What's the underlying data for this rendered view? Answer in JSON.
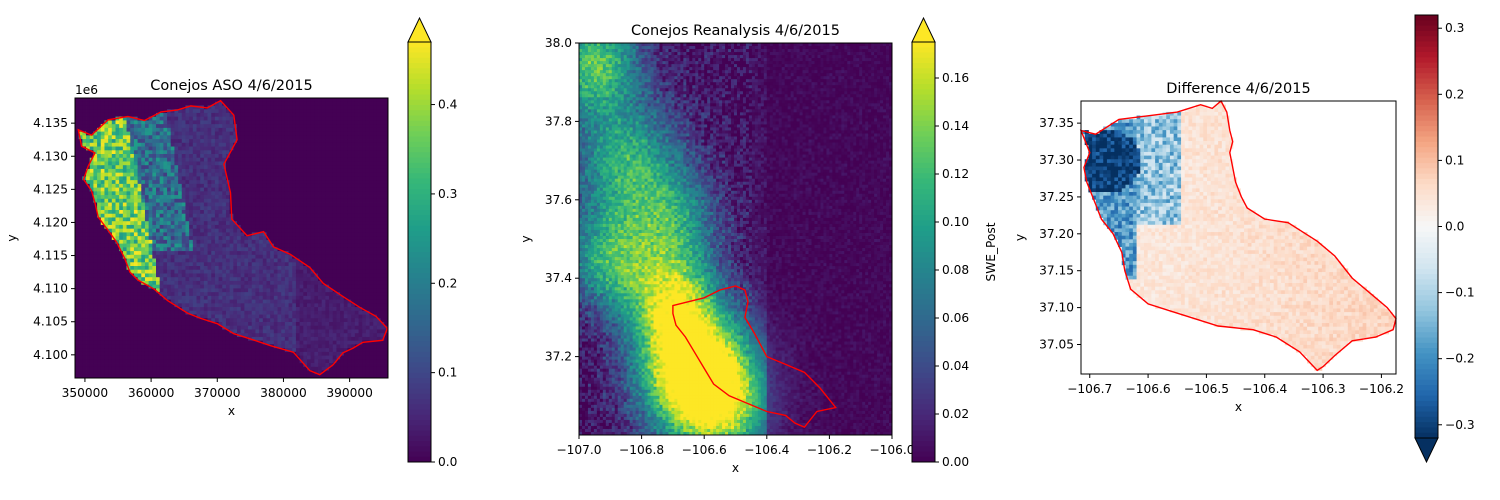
{
  "chart_data": [
    {
      "type": "heatmap",
      "title": "Conejos ASO 4/6/2015",
      "xlabel": "x",
      "ylabel": "y",
      "xlim": [
        348500,
        395800
      ],
      "ylim": [
        4096500,
        4138800
      ],
      "x_ticks": [
        350000,
        360000,
        370000,
        380000,
        390000
      ],
      "x_tick_labels": [
        "350000",
        "360000",
        "370000",
        "380000",
        "390000"
      ],
      "y_ticks": [
        4100000,
        4105000,
        4110000,
        4115000,
        4120000,
        4125000,
        4130000,
        4135000
      ],
      "y_tick_labels": [
        "4.100",
        "4.105",
        "4.110",
        "4.115",
        "4.120",
        "4.125",
        "4.130",
        "4.135"
      ],
      "y_offset_label": "1e6",
      "colormap": "viridis",
      "colorbar": {
        "vmin": 0.0,
        "vmax": 0.47,
        "extend": "max",
        "ticks": [
          0.0,
          0.1,
          0.2,
          0.3,
          0.4
        ],
        "tick_labels": [
          "0.0",
          "0.1",
          "0.2",
          "0.3",
          "0.4"
        ],
        "label": ""
      },
      "outline_color": "#ff0000",
      "outline": [
        [
          349000,
          4134000
        ],
        [
          351000,
          4133200
        ],
        [
          353500,
          4135500
        ],
        [
          356500,
          4136000
        ],
        [
          359000,
          4135400
        ],
        [
          361500,
          4136700
        ],
        [
          364000,
          4137000
        ],
        [
          366000,
          4137600
        ],
        [
          368500,
          4137300
        ],
        [
          370500,
          4138400
        ],
        [
          372500,
          4136200
        ],
        [
          373000,
          4132500
        ],
        [
          371000,
          4128800
        ],
        [
          372000,
          4124500
        ],
        [
          372200,
          4120500
        ],
        [
          374500,
          4118000
        ],
        [
          377000,
          4118600
        ],
        [
          378500,
          4116300
        ],
        [
          381000,
          4115200
        ],
        [
          384000,
          4113200
        ],
        [
          386000,
          4110800
        ],
        [
          389000,
          4108800
        ],
        [
          391500,
          4107200
        ],
        [
          394000,
          4105800
        ],
        [
          395700,
          4104000
        ],
        [
          395000,
          4102200
        ],
        [
          392000,
          4101900
        ],
        [
          390500,
          4101000
        ],
        [
          389000,
          4100300
        ],
        [
          387500,
          4098500
        ],
        [
          385500,
          4097000
        ],
        [
          384000,
          4097600
        ],
        [
          381500,
          4100400
        ],
        [
          378000,
          4101400
        ],
        [
          375000,
          4102400
        ],
        [
          372500,
          4103200
        ],
        [
          370000,
          4104700
        ],
        [
          367500,
          4105500
        ],
        [
          365500,
          4106300
        ],
        [
          362500,
          4108200
        ],
        [
          360500,
          4109900
        ],
        [
          358000,
          4111300
        ],
        [
          356800,
          4112500
        ],
        [
          356000,
          4114600
        ],
        [
          354800,
          4117000
        ],
        [
          353500,
          4118800
        ],
        [
          352000,
          4120800
        ],
        [
          351500,
          4123000
        ],
        [
          351000,
          4124800
        ],
        [
          349800,
          4126500
        ],
        [
          350500,
          4128500
        ],
        [
          351500,
          4130500
        ],
        [
          349500,
          4131500
        ],
        [
          349000,
          4134000
        ]
      ]
    },
    {
      "type": "heatmap",
      "title": "Conejos Reanalysis 4/6/2015",
      "xlabel": "x",
      "ylabel": "y",
      "xlim": [
        -107.0,
        -106.0
      ],
      "ylim": [
        37.0,
        38.0
      ],
      "x_ticks": [
        -107.0,
        -106.8,
        -106.6,
        -106.4,
        -106.2,
        -106.0
      ],
      "x_tick_labels": [
        "−107.0",
        "−106.8",
        "−106.6",
        "−106.4",
        "−106.2",
        "−106.0"
      ],
      "y_ticks": [
        37.2,
        37.4,
        37.6,
        37.8,
        38.0
      ],
      "y_tick_labels": [
        "37.2",
        "37.4",
        "37.6",
        "37.8",
        "38.0"
      ],
      "colormap": "viridis",
      "colorbar": {
        "vmin": 0.0,
        "vmax": 0.175,
        "extend": "max",
        "ticks": [
          0.0,
          0.02,
          0.04,
          0.06,
          0.08,
          0.1,
          0.12,
          0.14,
          0.16
        ],
        "tick_labels": [
          "0.00",
          "0.02",
          "0.04",
          "0.06",
          "0.08",
          "0.10",
          "0.12",
          "0.14",
          "0.16"
        ],
        "label": "SWE_Post"
      },
      "outline_color": "#ff0000",
      "outline": [
        [
          -106.7,
          37.33
        ],
        [
          -106.65,
          37.34
        ],
        [
          -106.6,
          37.35
        ],
        [
          -106.55,
          37.37
        ],
        [
          -106.5,
          37.38
        ],
        [
          -106.47,
          37.37
        ],
        [
          -106.46,
          37.34
        ],
        [
          -106.47,
          37.3
        ],
        [
          -106.44,
          37.26
        ],
        [
          -106.4,
          37.2
        ],
        [
          -106.34,
          37.18
        ],
        [
          -106.28,
          37.16
        ],
        [
          -106.23,
          37.12
        ],
        [
          -106.2,
          37.09
        ],
        [
          -106.18,
          37.07
        ],
        [
          -106.24,
          37.06
        ],
        [
          -106.28,
          37.02
        ],
        [
          -106.31,
          37.03
        ],
        [
          -106.34,
          37.05
        ],
        [
          -106.4,
          37.06
        ],
        [
          -106.46,
          37.08
        ],
        [
          -106.52,
          37.1
        ],
        [
          -106.57,
          37.13
        ],
        [
          -106.6,
          37.17
        ],
        [
          -106.63,
          37.21
        ],
        [
          -106.66,
          37.25
        ],
        [
          -106.69,
          37.28
        ],
        [
          -106.7,
          37.31
        ],
        [
          -106.7,
          37.33
        ]
      ]
    },
    {
      "type": "heatmap",
      "title": "Difference 4/6/2015",
      "xlabel": "x",
      "ylabel": "y",
      "xlim": [
        -106.715,
        -106.175
      ],
      "ylim": [
        37.01,
        37.38
      ],
      "x_ticks": [
        -106.7,
        -106.6,
        -106.5,
        -106.4,
        -106.3,
        -106.2
      ],
      "x_tick_labels": [
        "−106.7",
        "−106.6",
        "−106.5",
        "−106.4",
        "−106.3",
        "−106.2"
      ],
      "y_ticks": [
        37.05,
        37.1,
        37.15,
        37.2,
        37.25,
        37.3,
        37.35
      ],
      "y_tick_labels": [
        "37.05",
        "37.10",
        "37.15",
        "37.20",
        "37.25",
        "37.30",
        "37.35"
      ],
      "colormap": "RdBu_r",
      "colorbar": {
        "vmin": -0.32,
        "vmax": 0.32,
        "extend": "min",
        "ticks": [
          -0.3,
          -0.2,
          -0.1,
          0.0,
          0.1,
          0.2,
          0.3
        ],
        "tick_labels": [
          "−0.3",
          "−0.2",
          "−0.1",
          "0.0",
          "0.1",
          "0.2",
          "0.3"
        ],
        "label": ""
      },
      "outline_color": "#ff0000",
      "outline": [
        [
          -106.715,
          37.34
        ],
        [
          -106.69,
          37.335
        ],
        [
          -106.65,
          37.355
        ],
        [
          -106.6,
          37.36
        ],
        [
          -106.55,
          37.365
        ],
        [
          -106.51,
          37.375
        ],
        [
          -106.49,
          37.37
        ],
        [
          -106.475,
          37.38
        ],
        [
          -106.465,
          37.365
        ],
        [
          -106.46,
          37.34
        ],
        [
          -106.455,
          37.325
        ],
        [
          -106.46,
          37.31
        ],
        [
          -106.455,
          37.29
        ],
        [
          -106.45,
          37.27
        ],
        [
          -106.44,
          37.25
        ],
        [
          -106.43,
          37.235
        ],
        [
          -106.4,
          37.22
        ],
        [
          -106.36,
          37.215
        ],
        [
          -106.33,
          37.2
        ],
        [
          -106.31,
          37.19
        ],
        [
          -106.28,
          37.17
        ],
        [
          -106.25,
          37.14
        ],
        [
          -106.22,
          37.12
        ],
        [
          -106.19,
          37.1
        ],
        [
          -106.175,
          37.085
        ],
        [
          -106.18,
          37.07
        ],
        [
          -106.21,
          37.06
        ],
        [
          -106.25,
          37.055
        ],
        [
          -106.28,
          37.035
        ],
        [
          -106.3,
          37.02
        ],
        [
          -106.31,
          37.015
        ],
        [
          -106.34,
          37.04
        ],
        [
          -106.38,
          37.06
        ],
        [
          -106.42,
          37.07
        ],
        [
          -106.48,
          37.075
        ],
        [
          -106.52,
          37.085
        ],
        [
          -106.56,
          37.095
        ],
        [
          -106.6,
          37.105
        ],
        [
          -106.63,
          37.125
        ],
        [
          -106.64,
          37.15
        ],
        [
          -106.645,
          37.175
        ],
        [
          -106.66,
          37.2
        ],
        [
          -106.68,
          37.22
        ],
        [
          -106.69,
          37.24
        ],
        [
          -106.705,
          37.27
        ],
        [
          -106.71,
          37.29
        ],
        [
          -106.7,
          37.31
        ],
        [
          -106.715,
          37.34
        ]
      ]
    }
  ]
}
